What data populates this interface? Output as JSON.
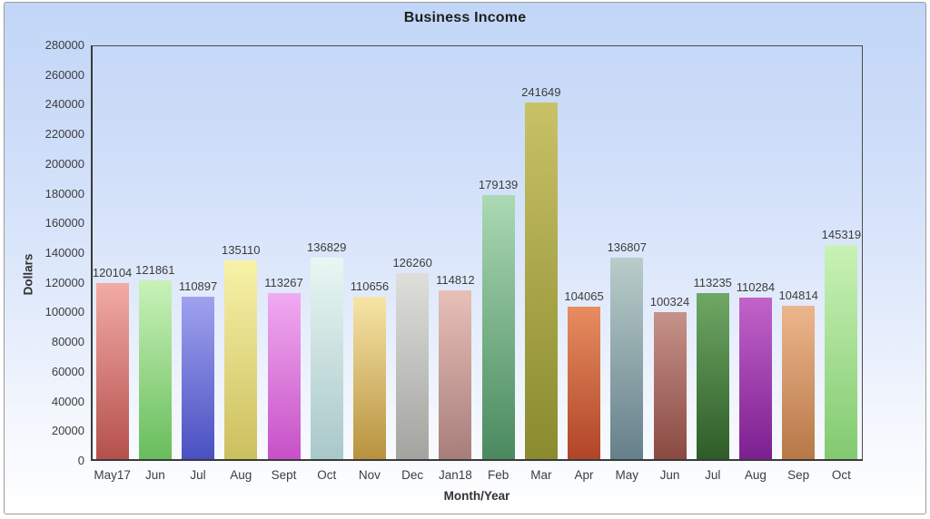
{
  "frame": {
    "border_color": "#9b9b9b",
    "background_top": "#c2d6f7",
    "background_bottom": "#ffffff"
  },
  "chart_data": {
    "type": "bar",
    "title": "Business Income",
    "xlabel": "Month/Year",
    "ylabel": "Dollars",
    "ylim": [
      0,
      280000
    ],
    "ytick_step": 20000,
    "grid": false,
    "legend_position": "none",
    "categories": [
      "May17",
      "Jun",
      "Jul",
      "Aug",
      "Sept",
      "Oct",
      "Nov",
      "Dec",
      "Jan18",
      "Feb",
      "Mar",
      "Apr",
      "May",
      "Jun",
      "Jul",
      "Aug",
      "Sep",
      "Oct"
    ],
    "values": [
      120104,
      121861,
      110897,
      135110,
      113267,
      136829,
      110656,
      126260,
      114812,
      179139,
      241649,
      104065,
      136807,
      100324,
      113235,
      110284,
      104814,
      145319
    ],
    "bar_gradient_top": [
      "#f2aba6",
      "#c9f2b9",
      "#a0a2ee",
      "#f8f2a8",
      "#f0abf0",
      "#e9f7f2",
      "#f7e5a6",
      "#dededa",
      "#e7c0b8",
      "#abd9b4",
      "#c9c267",
      "#e78d60",
      "#b9cdca",
      "#c69289",
      "#6fa865",
      "#c263ca",
      "#ecb68c",
      "#c9f2b6"
    ],
    "bar_gradient_bottom": [
      "#b5504c",
      "#68bd5c",
      "#4a50c2",
      "#ccbf5e",
      "#c751c7",
      "#a9c8ca",
      "#b8923f",
      "#a3a3a0",
      "#a87e7a",
      "#4a8a5e",
      "#8a8a2e",
      "#b04527",
      "#66808b",
      "#8a4a42",
      "#2e5c28",
      "#7c2090",
      "#b87848",
      "#82ca70"
    ]
  }
}
